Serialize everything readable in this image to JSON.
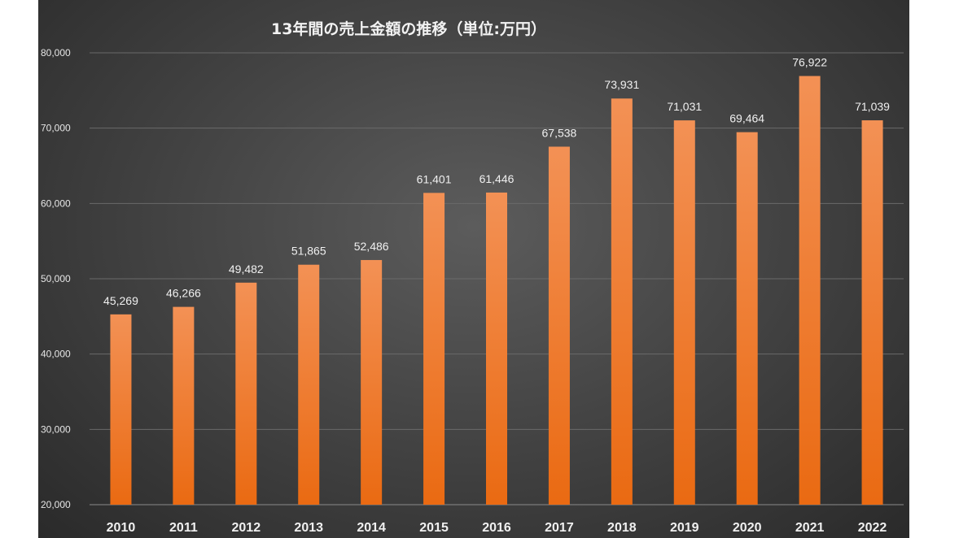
{
  "chart_data": {
    "type": "bar",
    "title": "13年間の売上金額の推移（単位:万円）",
    "categories": [
      "2010",
      "2011",
      "2012",
      "2013",
      "2014",
      "2015",
      "2016",
      "2017",
      "2018",
      "2019",
      "2020",
      "2021",
      "2022"
    ],
    "values": [
      45269,
      46266,
      49482,
      51865,
      52486,
      61401,
      61446,
      67538,
      73931,
      71031,
      69464,
      76922,
      71039
    ],
    "data_labels": [
      "45,269",
      "46,266",
      "49,482",
      "51,865",
      "52,486",
      "61,401",
      "61,446",
      "67,538",
      "73,931",
      "71,031",
      "69,464",
      "76,922",
      "71,039"
    ],
    "ylim": [
      20000,
      80000
    ],
    "yticks": [
      20000,
      30000,
      40000,
      50000,
      60000,
      70000,
      80000
    ],
    "ytick_labels": [
      "20,000",
      "30,000",
      "40,000",
      "50,000",
      "60,000",
      "70,000",
      "80,000"
    ],
    "xlabel": "",
    "ylabel": "",
    "grid": true,
    "legend": "none",
    "colors": {
      "bar_top": "#f39155",
      "bar_bottom": "#ea6a12",
      "background_center": "#5c5c5c",
      "background_edge": "#2a2a2a",
      "text": "#f0f0f0"
    }
  }
}
